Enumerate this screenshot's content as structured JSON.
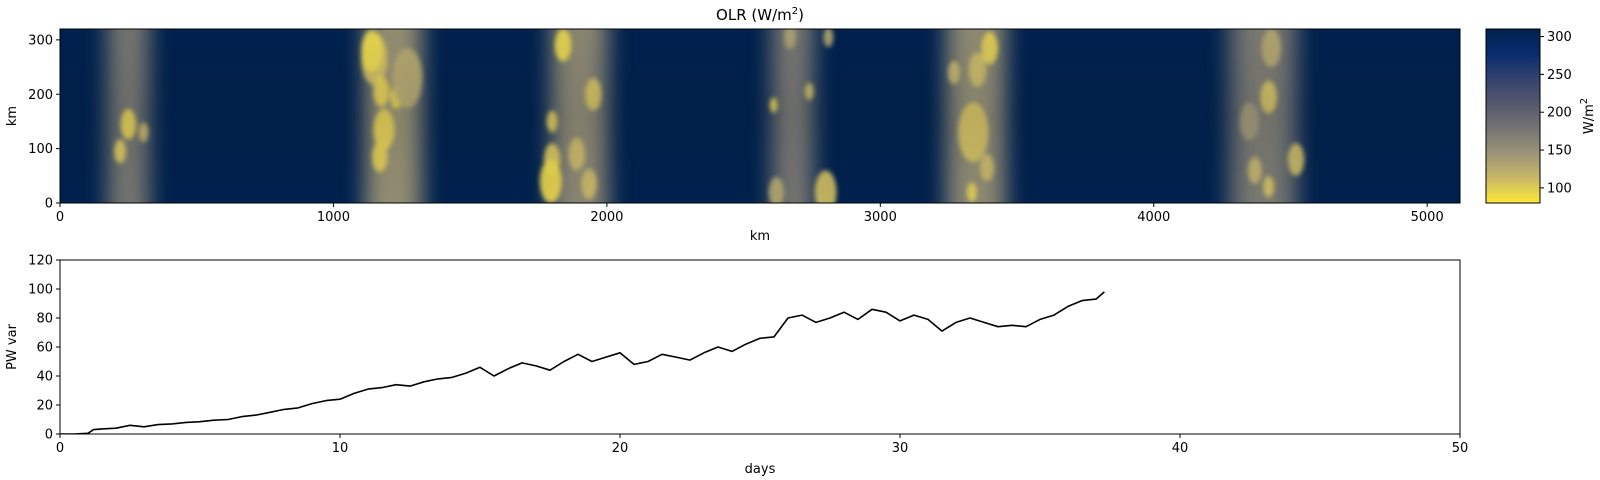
{
  "chart_data": [
    {
      "type": "heatmap",
      "title_main": "OLR (W/m",
      "title_sup": "2",
      "title_end": ")",
      "xlabel": "km",
      "ylabel": "km",
      "xlim": [
        0,
        5120
      ],
      "ylim": [
        0,
        320
      ],
      "xticks": [
        0,
        1000,
        2000,
        3000,
        4000,
        5000
      ],
      "yticks": [
        0,
        100,
        200,
        300
      ],
      "colormap": "cividis",
      "colormap_colors": [
        "#fee838",
        "#c8b866",
        "#9b9478",
        "#757474",
        "#55586d",
        "#33436f",
        "#082c6e",
        "#00224e"
      ],
      "colorbar": {
        "label_main": "W/m",
        "label_sup": "2",
        "range": [
          80,
          310
        ],
        "ticks": [
          100,
          150,
          200,
          250,
          300
        ]
      },
      "convective_bands": [
        {
          "center_km": 250,
          "width_km": 170,
          "intensity": 0.55
        },
        {
          "center_km": 1220,
          "width_km": 220,
          "intensity": 0.9
        },
        {
          "center_km": 1900,
          "width_km": 220,
          "intensity": 0.8
        },
        {
          "center_km": 2680,
          "width_km": 170,
          "intensity": 0.55
        },
        {
          "center_km": 3350,
          "width_km": 230,
          "intensity": 0.85
        },
        {
          "center_km": 4400,
          "width_km": 260,
          "intensity": 0.6
        }
      ],
      "cells": [
        {
          "x_km": 250,
          "y_km": 145,
          "r_km": 28,
          "olr": 100
        },
        {
          "x_km": 220,
          "y_km": 95,
          "r_km": 22,
          "olr": 105
        },
        {
          "x_km": 305,
          "y_km": 130,
          "r_km": 18,
          "olr": 120
        },
        {
          "x_km": 1150,
          "y_km": 265,
          "r_km": 48,
          "olr": 110
        },
        {
          "x_km": 1140,
          "y_km": 280,
          "r_km": 38,
          "olr": 95
        },
        {
          "x_km": 1230,
          "y_km": 195,
          "r_km": 22,
          "olr": 100
        },
        {
          "x_km": 1175,
          "y_km": 205,
          "r_km": 28,
          "olr": 100
        },
        {
          "x_km": 1185,
          "y_km": 135,
          "r_km": 38,
          "olr": 100
        },
        {
          "x_km": 1170,
          "y_km": 85,
          "r_km": 28,
          "olr": 100
        },
        {
          "x_km": 1270,
          "y_km": 230,
          "r_km": 55,
          "olr": 130
        },
        {
          "x_km": 1840,
          "y_km": 290,
          "r_km": 30,
          "olr": 95
        },
        {
          "x_km": 1800,
          "y_km": 150,
          "r_km": 20,
          "olr": 105
        },
        {
          "x_km": 1800,
          "y_km": 80,
          "r_km": 30,
          "olr": 105
        },
        {
          "x_km": 1795,
          "y_km": 40,
          "r_km": 40,
          "olr": 95
        },
        {
          "x_km": 1890,
          "y_km": 90,
          "r_km": 30,
          "olr": 115
        },
        {
          "x_km": 1950,
          "y_km": 200,
          "r_km": 30,
          "olr": 110
        },
        {
          "x_km": 1935,
          "y_km": 35,
          "r_km": 28,
          "olr": 115
        },
        {
          "x_km": 2610,
          "y_km": 180,
          "r_km": 14,
          "olr": 100
        },
        {
          "x_km": 2800,
          "y_km": 20,
          "r_km": 40,
          "olr": 110
        },
        {
          "x_km": 2620,
          "y_km": 20,
          "r_km": 28,
          "olr": 130
        },
        {
          "x_km": 2740,
          "y_km": 205,
          "r_km": 16,
          "olr": 115
        },
        {
          "x_km": 2670,
          "y_km": 305,
          "r_km": 22,
          "olr": 135
        },
        {
          "x_km": 2810,
          "y_km": 305,
          "r_km": 18,
          "olr": 130
        },
        {
          "x_km": 3400,
          "y_km": 285,
          "r_km": 30,
          "olr": 100
        },
        {
          "x_km": 3340,
          "y_km": 130,
          "r_km": 55,
          "olr": 110
        },
        {
          "x_km": 3355,
          "y_km": 245,
          "r_km": 32,
          "olr": 115
        },
        {
          "x_km": 3390,
          "y_km": 65,
          "r_km": 25,
          "olr": 115
        },
        {
          "x_km": 3335,
          "y_km": 20,
          "r_km": 18,
          "olr": 100
        },
        {
          "x_km": 3270,
          "y_km": 240,
          "r_km": 22,
          "olr": 120
        },
        {
          "x_km": 4420,
          "y_km": 195,
          "r_km": 30,
          "olr": 110
        },
        {
          "x_km": 4520,
          "y_km": 80,
          "r_km": 30,
          "olr": 115
        },
        {
          "x_km": 4370,
          "y_km": 60,
          "r_km": 25,
          "olr": 120
        },
        {
          "x_km": 4420,
          "y_km": 30,
          "r_km": 20,
          "olr": 110
        },
        {
          "x_km": 4430,
          "y_km": 285,
          "r_km": 35,
          "olr": 130
        },
        {
          "x_km": 4350,
          "y_km": 150,
          "r_km": 35,
          "olr": 145
        }
      ]
    },
    {
      "type": "line",
      "xlabel": "days",
      "ylabel": "PW var",
      "xlim": [
        0,
        50
      ],
      "ylim": [
        0,
        120
      ],
      "xticks": [
        0,
        10,
        20,
        30,
        40,
        50
      ],
      "yticks": [
        0,
        20,
        40,
        60,
        80,
        100,
        120
      ],
      "color": "#000000",
      "x": [
        0,
        0.5,
        1.0,
        1.2,
        1.5,
        2.0,
        2.5,
        3.0,
        3.5,
        4.0,
        4.5,
        5.0,
        5.5,
        6.0,
        6.5,
        7.0,
        7.5,
        8.0,
        8.5,
        9.0,
        9.5,
        10.0,
        10.5,
        11.0,
        11.5,
        12.0,
        12.5,
        13.0,
        13.5,
        14.0,
        14.5,
        15.0,
        15.5,
        16.0,
        16.5,
        17.0,
        17.5,
        18.0,
        18.5,
        19.0,
        19.5,
        20.0,
        20.5,
        21.0,
        21.5,
        22.0,
        22.5,
        23.0,
        23.5,
        24.0,
        24.5,
        25.0,
        25.5,
        26.0,
        26.5,
        27.0,
        27.5,
        28.0,
        28.5,
        29.0,
        29.5,
        30.0,
        30.5,
        31.0,
        31.5,
        32.0,
        32.5,
        33.0,
        33.5,
        34.0,
        34.5,
        35.0,
        35.5,
        36.0,
        36.5,
        37.0,
        37.3
      ],
      "y": [
        0,
        0,
        0.5,
        3,
        3.5,
        4,
        6,
        5,
        6.5,
        7,
        8,
        8.5,
        9.5,
        10,
        12,
        13,
        15,
        17,
        18,
        21,
        23,
        24,
        28,
        31,
        32,
        34,
        33,
        36,
        38,
        39,
        42,
        46,
        40,
        45,
        49,
        47,
        44,
        50,
        55,
        50,
        53,
        56,
        48,
        50,
        55,
        53,
        51,
        56,
        60,
        57,
        62,
        66,
        67,
        80,
        82,
        77,
        80,
        84,
        79,
        86,
        84,
        78,
        82,
        79,
        71,
        77,
        80,
        77,
        74,
        75,
        74,
        79,
        82,
        88,
        92,
        93,
        98
      ]
    }
  ]
}
